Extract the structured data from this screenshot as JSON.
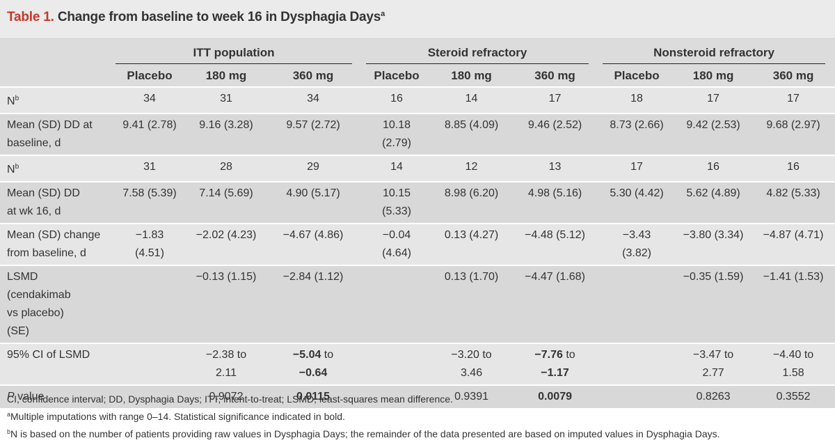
{
  "title": {
    "label": "Table 1.",
    "text": "Change from baseline to week 16 in Dysphagia Days",
    "sup": "a"
  },
  "groups": [
    "ITT population",
    "Steroid refractory",
    "Nonsteroid refractory"
  ],
  "columns": [
    "Placebo",
    "180 mg",
    "360 mg",
    "Placebo",
    "180 mg",
    "360 mg",
    "Placebo",
    "180 mg",
    "360 mg"
  ],
  "rows": {
    "n1": {
      "label": "N",
      "sup": "b",
      "cells": [
        "34",
        "31",
        "34",
        "16",
        "14",
        "17",
        "18",
        "17",
        "17"
      ]
    },
    "baseline": {
      "label": "Mean (SD) DD at baseline, d",
      "cells": [
        "9.41 (2.78)",
        "9.16 (3.28)",
        "9.57 (2.72)",
        "10.18 (2.79)",
        "8.85 (4.09)",
        "9.46 (2.52)",
        "8.73 (2.66)",
        "9.42 (2.53)",
        "9.68 (2.97)"
      ]
    },
    "n2": {
      "label": "N",
      "sup": "b",
      "cells": [
        "31",
        "28",
        "29",
        "14",
        "12",
        "13",
        "17",
        "16",
        "16"
      ]
    },
    "wk16": {
      "label": "Mean (SD) DD at wk 16, d",
      "cells": [
        "7.58 (5.39)",
        "7.14 (5.69)",
        "4.90 (5.17)",
        "10.15 (5.33)",
        "8.98 (6.20)",
        "4.98 (5.16)",
        "5.30 (4.42)",
        "5.62 (4.89)",
        "4.82 (5.33)"
      ]
    },
    "change": {
      "label": "Mean (SD) change from baseline, d",
      "cells": [
        "−1.83 (4.51)",
        "−2.02 (4.23)",
        "−4.67 (4.86)",
        "−0.04 (4.64)",
        "0.13 (4.27)",
        "−4.48 (5.12)",
        "−3.43 (3.82)",
        "−3.80 (3.34)",
        "−4.87 (4.71)"
      ]
    },
    "lsmd": {
      "label": "LSMD (cendakimab vs placebo) (SE)",
      "cells": [
        "",
        "−0.13 (1.15)",
        "−2.84 (1.12)",
        "",
        "0.13 (1.70)",
        "−4.47 (1.68)",
        "",
        "−0.35 (1.59)",
        "−1.41 (1.53)"
      ]
    },
    "ci": {
      "label": "95% CI of LSMD",
      "cells": [
        "",
        "−2.38 to 2.11",
        "",
        "",
        "−3.20 to 3.46",
        "",
        "",
        "−3.47 to 2.77",
        "−4.40 to 1.58"
      ],
      "bold1": {
        "a": "−5.04",
        "to": " to ",
        "b": "−0.64"
      },
      "bold2": {
        "a": "−7.76",
        "to": " to ",
        "b": "−1.17"
      }
    },
    "pvalue": {
      "label_p": "P",
      "label_rest": " value",
      "cells": [
        "",
        "0.9072",
        "0.0115",
        "",
        "0.9391",
        "0.0079",
        "",
        "0.8263",
        "0.3552"
      ]
    }
  },
  "footnotes": {
    "line1": "CI, confidence interval; DD, Dysphagia Days; ITT, intent-to-treat; LSMD, least-squares mean difference.",
    "line2_sup": "a",
    "line2": "Multiple imputations with range 0–14. Statistical significance indicated in bold.",
    "line3_sup": "b",
    "line3": "N is based on the number of patients providing raw values in Dysphagia Days; the remainder of the data presented are based on imputed values in Dysphagia Days."
  }
}
